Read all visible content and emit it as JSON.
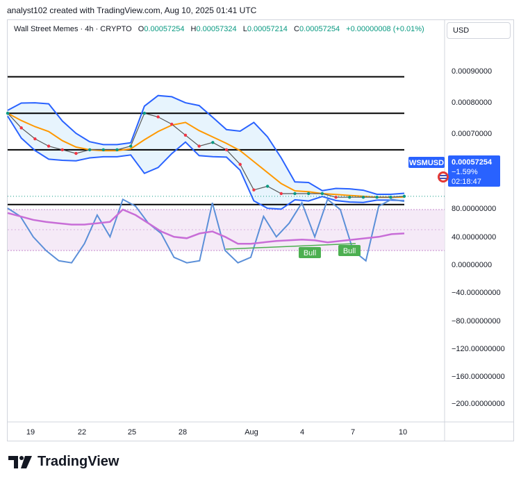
{
  "header": {
    "credit": "analyst102 created with TradingView.com, Aug 10, 2025 01:41 UTC"
  },
  "legend": {
    "symbol": "Wall Street Memes · 4h · CRYPTO",
    "open_label": "O",
    "open": "0.00057254",
    "high_label": "H",
    "high": "0.00057324",
    "low_label": "L",
    "low": "0.00057214",
    "close_label": "C",
    "close": "0.00057254",
    "change": "+0.00000008 (+0.01%)"
  },
  "currency_button": "USD",
  "price_tag": {
    "symbol": "WSMUSD",
    "price": "0.00057254",
    "change": "−1.59%",
    "countdown": "02:18:47"
  },
  "brand": {
    "name": "TradingView"
  },
  "colors": {
    "up": "#089981",
    "down": "#f23645",
    "bollinger": "#2962ff",
    "bollinger_fill": "#e3f2fd",
    "ma": "#ff9800",
    "stoch_k": "#5b8fd8",
    "stoch_d": "#c86dd7",
    "bull": "#4caf50",
    "levels": "#000000"
  },
  "chart_data": [
    {
      "type": "line",
      "title": "Wall Street Memes · 4h · CRYPTO",
      "x_ticks": [
        "19",
        "22",
        "25",
        "28",
        "Aug",
        "4",
        "7",
        "10"
      ],
      "y_ticks": [
        "0.00090000",
        "0.00080000",
        "0.00070000"
      ],
      "ylim": [
        0.00054,
        0.001
      ],
      "horizontal_levels": [
        0.0009,
        0.0008,
        0.0007,
        0.00055
      ],
      "series": [
        {
          "name": "WSMUSD",
          "values": [
            0.0008,
            0.00076,
            0.00073,
            0.00071,
            0.0007,
            0.00069,
            0.0007,
            0.0007,
            0.0007,
            0.00071,
            0.0008,
            0.00079,
            0.00077,
            0.00074,
            0.00071,
            0.00072,
            0.0007,
            0.00066,
            0.00059,
            0.0006,
            0.00058,
            0.00058,
            0.00058,
            0.00058,
            0.00057,
            0.00057,
            0.00057,
            0.00057,
            0.00057,
            0.00057254
          ]
        }
      ],
      "annotations": [
        "WSMUSD",
        "0.00057254",
        "−1.59%",
        "02:18:47"
      ]
    },
    {
      "type": "line",
      "x_ticks": [
        "19",
        "22",
        "25",
        "28",
        "Aug",
        "4",
        "7",
        "10"
      ],
      "y_ticks": [
        "80.00000000",
        "40.00000000",
        "0.00000000",
        "−40.00000000",
        "−80.00000000",
        "−120.00000000",
        "−160.00000000",
        "−200.00000000"
      ],
      "ylim": [
        -215,
        105
      ],
      "band": [
        20,
        80
      ],
      "series": [
        {
          "name": "",
          "values": [
            82,
            70,
            40,
            20,
            5,
            2,
            30,
            72,
            40,
            95,
            85,
            60,
            45,
            10,
            2,
            5,
            90,
            20,
            2,
            10,
            70,
            40,
            60,
            90,
            40,
            95,
            80,
            20,
            5,
            85,
            95,
            92
          ]
        },
        {
          "name": "",
          "values": [
            75,
            70,
            65,
            62,
            60,
            58,
            58,
            60,
            62,
            80,
            72,
            60,
            48,
            40,
            38,
            45,
            48,
            40,
            30,
            30,
            32,
            34,
            35,
            36,
            35,
            32,
            34,
            36,
            38,
            40,
            44,
            45
          ]
        }
      ],
      "annotations": [
        "Bull",
        "Bull"
      ]
    }
  ]
}
